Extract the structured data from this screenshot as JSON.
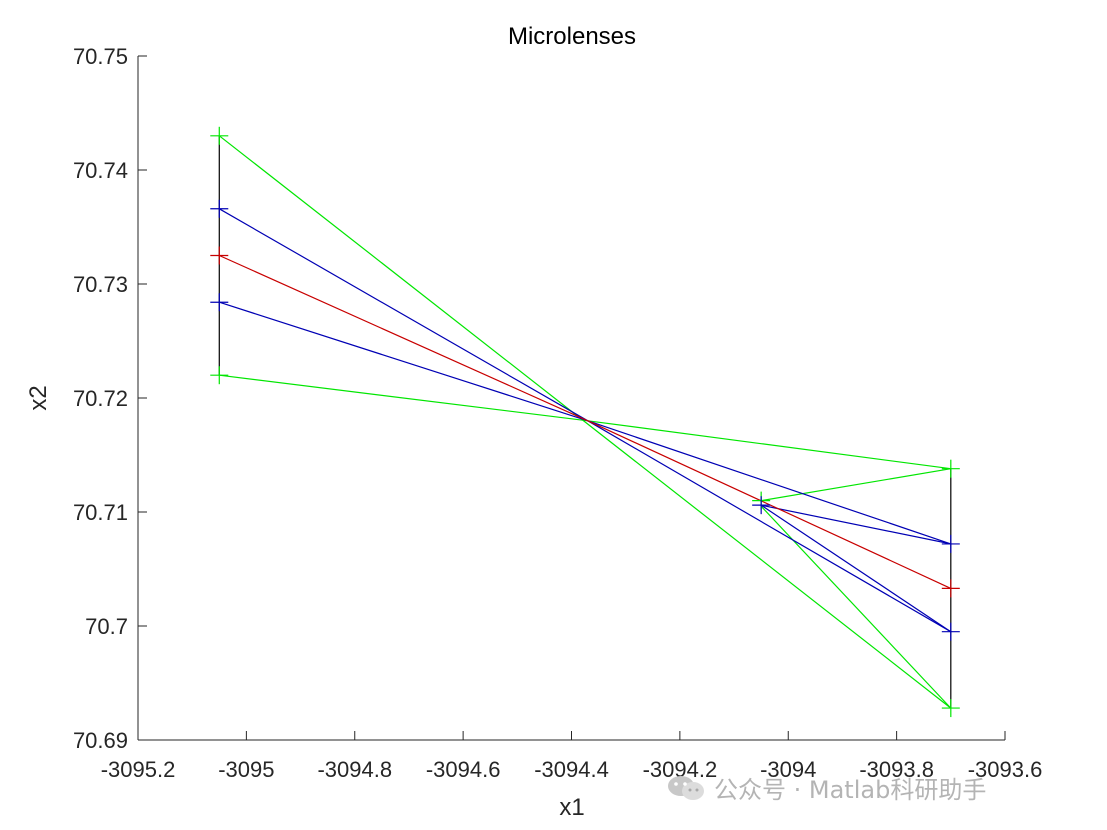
{
  "chart_data": {
    "type": "line",
    "title": "Microlenses",
    "xlabel": "x1",
    "ylabel": "x2",
    "xlim": [
      -3095.2,
      -3093.6
    ],
    "ylim": [
      70.69,
      70.75
    ],
    "xticks": [
      -3095.2,
      -3095,
      -3094.8,
      -3094.6,
      -3094.4,
      -3094.2,
      -3094,
      -3093.8,
      -3093.6
    ],
    "xtick_labels": [
      "-3095.2",
      "-3095",
      "-3094.8",
      "-3094.6",
      "-3094.4",
      "-3094.2",
      "-3094",
      "-3093.8",
      "-3093.6"
    ],
    "yticks": [
      70.69,
      70.7,
      70.71,
      70.72,
      70.73,
      70.74,
      70.75
    ],
    "ytick_labels": [
      "70.69",
      "70.7",
      "70.71",
      "70.72",
      "70.73",
      "70.74",
      "70.75"
    ],
    "grid": false,
    "colors": {
      "green": "#00e600",
      "blue": "#0000b4",
      "red": "#c80000",
      "black": "#000000"
    },
    "lens_segments": [
      {
        "name": "left-lens",
        "x": -3095.05,
        "y": [
          70.722,
          70.743
        ]
      },
      {
        "name": "right-lens",
        "x": -3093.7,
        "y": [
          70.6928,
          70.7138
        ]
      }
    ],
    "series": [
      {
        "name": "green-upper-ray",
        "color": "green",
        "points": [
          [
            -3095.05,
            70.743
          ],
          [
            -3093.7,
            70.6928
          ]
        ]
      },
      {
        "name": "green-lower-ray",
        "color": "green",
        "points": [
          [
            -3095.05,
            70.722
          ],
          [
            -3094.37,
            70.718
          ],
          [
            -3093.7,
            70.7138
          ]
        ]
      },
      {
        "name": "green-return-upper",
        "color": "green",
        "points": [
          [
            -3093.7,
            70.7138
          ],
          [
            -3094.05,
            70.711
          ]
        ]
      },
      {
        "name": "green-return-lower",
        "color": "green",
        "points": [
          [
            -3093.7,
            70.6928
          ],
          [
            -3094.05,
            70.7105
          ]
        ]
      },
      {
        "name": "blue-upper-ray",
        "color": "blue",
        "points": [
          [
            -3095.05,
            70.7366
          ],
          [
            -3094.37,
            70.718
          ],
          [
            -3093.7,
            70.6995
          ]
        ]
      },
      {
        "name": "blue-lower-ray",
        "color": "blue",
        "points": [
          [
            -3095.05,
            70.7284
          ],
          [
            -3094.37,
            70.718
          ],
          [
            -3093.7,
            70.7072
          ]
        ]
      },
      {
        "name": "blue-return-upper",
        "color": "blue",
        "points": [
          [
            -3093.7,
            70.7072
          ],
          [
            -3094.05,
            70.7106
          ]
        ]
      },
      {
        "name": "blue-return-lower",
        "color": "blue",
        "points": [
          [
            -3093.7,
            70.6995
          ],
          [
            -3094.05,
            70.7106
          ]
        ]
      },
      {
        "name": "red-chief-ray",
        "color": "red",
        "points": [
          [
            -3095.05,
            70.7325
          ],
          [
            -3094.37,
            70.718
          ],
          [
            -3093.7,
            70.7033
          ]
        ]
      }
    ],
    "markers": [
      {
        "color": "green",
        "x": -3095.05,
        "y": 70.743
      },
      {
        "color": "blue",
        "x": -3095.05,
        "y": 70.7366
      },
      {
        "color": "red",
        "x": -3095.05,
        "y": 70.7325
      },
      {
        "color": "blue",
        "x": -3095.05,
        "y": 70.7284
      },
      {
        "color": "green",
        "x": -3095.05,
        "y": 70.722
      },
      {
        "color": "green",
        "x": -3093.7,
        "y": 70.7138
      },
      {
        "color": "blue",
        "x": -3093.7,
        "y": 70.7072
      },
      {
        "color": "red",
        "x": -3093.7,
        "y": 70.7033
      },
      {
        "color": "blue",
        "x": -3093.7,
        "y": 70.6995
      },
      {
        "color": "green",
        "x": -3093.7,
        "y": 70.6928
      },
      {
        "color": "green",
        "x": -3094.05,
        "y": 70.711
      },
      {
        "color": "blue",
        "x": -3094.05,
        "y": 70.7106
      }
    ]
  },
  "watermark": {
    "icon": "wechat-icon",
    "text": "公众号 · Matlab科研助手"
  }
}
